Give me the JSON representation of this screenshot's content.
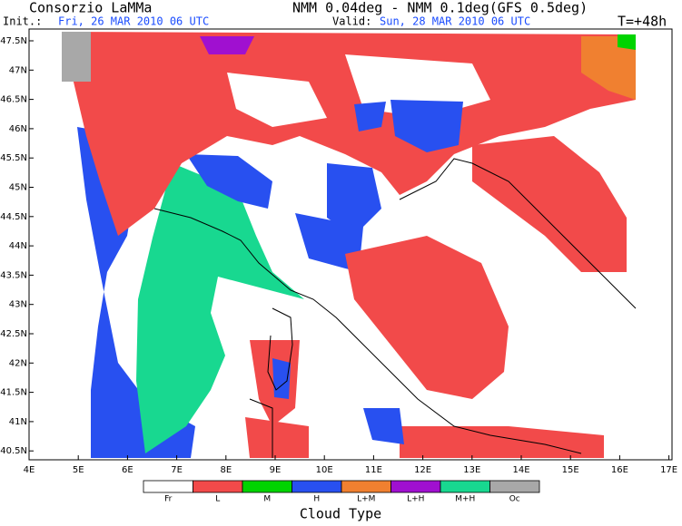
{
  "header": {
    "org": "Consorzio LaMMa",
    "model": "NMM 0.04deg - NMM 0.1deg(GFS 0.5deg)",
    "init_label": "Init.:",
    "init_time": "Fri, 26 MAR 2010  06 UTC",
    "valid_label": "Valid:",
    "valid_time": "Sun, 28 MAR 2010  06 UTC",
    "lead": "T=+48h"
  },
  "map": {
    "x_ticks": [
      "4E",
      "5E",
      "6E",
      "7E",
      "8E",
      "9E",
      "10E",
      "11E",
      "12E",
      "13E",
      "14E",
      "15E",
      "16E",
      "17E"
    ],
    "y_ticks": [
      "47.5N",
      "47N",
      "46.5N",
      "46N",
      "45.5N",
      "45N",
      "44.5N",
      "44N",
      "43.5N",
      "43N",
      "42.5N",
      "42N",
      "41.5N",
      "41N",
      "40.5N"
    ]
  },
  "legend": {
    "title": "Cloud Type",
    "items": [
      {
        "label": "Fr",
        "color": "#ffffff"
      },
      {
        "label": "L",
        "color": "#f24a4a"
      },
      {
        "label": "M",
        "color": "#00d400"
      },
      {
        "label": "H",
        "color": "#2850f0"
      },
      {
        "label": "L+M",
        "color": "#f08030"
      },
      {
        "label": "L+H",
        "color": "#a010d0"
      },
      {
        "label": "M+H",
        "color": "#18d890"
      },
      {
        "label": "Oc",
        "color": "#a8a8a8"
      }
    ]
  }
}
